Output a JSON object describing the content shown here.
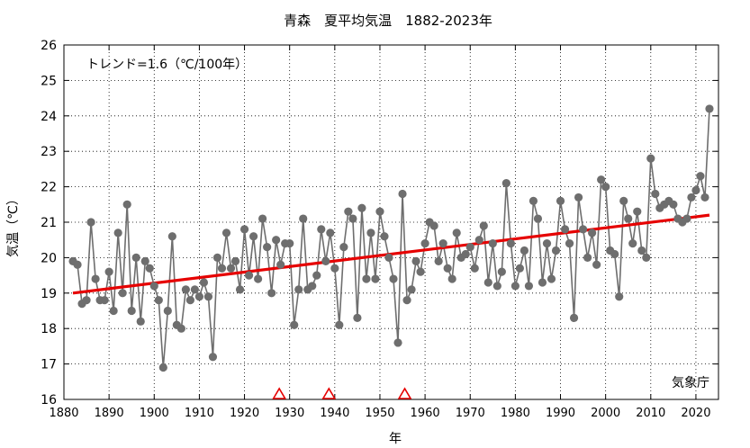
{
  "chart_data": {
    "type": "line",
    "title": "青森　夏平均気温　1882-2023年",
    "xlabel": "年",
    "ylabel": "気温（℃）",
    "xlim": [
      1880,
      2025
    ],
    "ylim": [
      16,
      26
    ],
    "x_ticks": [
      1880,
      1890,
      1900,
      1910,
      1920,
      1930,
      1940,
      1950,
      1960,
      1970,
      1980,
      1990,
      2000,
      2010,
      2020
    ],
    "y_ticks": [
      16,
      17,
      18,
      19,
      20,
      21,
      22,
      23,
      24,
      25,
      26
    ],
    "grid": true,
    "trend_label": "トレンド=1.6（℃/100年）",
    "source_label": "気象庁",
    "colors": {
      "series": "#6e6e6e",
      "trend": "#e60000",
      "marker": "#e60000",
      "grid": "#000000"
    },
    "series": [
      {
        "x": [
          1882,
          1883,
          1884,
          1885,
          1886,
          1887,
          1888,
          1889,
          1890,
          1891,
          1892,
          1893,
          1894,
          1895,
          1896,
          1897,
          1898,
          1899,
          1900,
          1901,
          1902,
          1903,
          1904,
          1905,
          1906,
          1907,
          1908,
          1909,
          1910,
          1911,
          1912,
          1913,
          1914,
          1915,
          1916,
          1917,
          1918,
          1919,
          1920,
          1921,
          1922,
          1923,
          1924,
          1925,
          1926,
          1927,
          1928,
          1929,
          1930,
          1931,
          1932,
          1933,
          1934,
          1935,
          1936,
          1937,
          1938,
          1939,
          1940,
          1941,
          1942,
          1943,
          1944,
          1945,
          1946,
          1947,
          1948,
          1949,
          1950,
          1951,
          1952,
          1953,
          1954,
          1955,
          1956,
          1957,
          1958,
          1959,
          1960,
          1961,
          1962,
          1963,
          1964,
          1965,
          1966,
          1967,
          1968,
          1969,
          1970,
          1971,
          1972,
          1973,
          1974,
          1975,
          1976,
          1977,
          1978,
          1979,
          1980,
          1981,
          1982,
          1983,
          1984,
          1985,
          1986,
          1987,
          1988,
          1989,
          1990,
          1991,
          1992,
          1993,
          1994,
          1995,
          1996,
          1997,
          1998,
          1999,
          2000,
          2001,
          2002,
          2003,
          2004,
          2005,
          2006,
          2007,
          2008,
          2009,
          2010,
          2011,
          2012,
          2013,
          2014,
          2015,
          2016,
          2017,
          2018,
          2019,
          2020,
          2021,
          2022,
          2023
        ],
        "y": [
          19.9,
          19.8,
          18.7,
          18.8,
          21.0,
          19.4,
          18.8,
          18.8,
          19.6,
          18.5,
          20.7,
          19.0,
          21.5,
          18.5,
          20.0,
          18.2,
          19.9,
          19.7,
          19.2,
          18.8,
          16.9,
          18.5,
          20.6,
          18.1,
          18.0,
          19.1,
          18.8,
          19.1,
          18.9,
          19.3,
          18.9,
          17.2,
          20.0,
          19.7,
          20.7,
          19.7,
          19.9,
          19.1,
          20.8,
          19.5,
          20.6,
          19.4,
          21.1,
          20.3,
          19.0,
          20.5,
          19.8,
          20.4,
          20.4,
          18.1,
          19.1,
          21.1,
          19.1,
          19.2,
          19.5,
          20.8,
          19.9,
          20.7,
          19.7,
          18.1,
          20.3,
          21.3,
          21.1,
          18.3,
          21.4,
          19.4,
          20.7,
          19.4,
          21.3,
          20.6,
          20.0,
          19.4,
          17.6,
          21.8,
          18.8,
          19.1,
          19.9,
          19.6,
          20.4,
          21.0,
          20.9,
          19.9,
          20.4,
          19.7,
          19.4,
          20.7,
          20.0,
          20.1,
          20.3,
          19.7,
          20.5,
          20.9,
          19.3,
          20.4,
          19.2,
          19.6,
          22.1,
          20.4,
          19.2,
          19.7,
          20.2,
          19.2,
          21.6,
          21.1,
          19.3,
          20.4,
          19.4,
          20.2,
          21.6,
          20.8,
          20.4,
          18.3,
          21.7,
          20.8,
          20.0,
          20.7,
          19.8,
          22.2,
          22.0,
          20.2,
          20.1,
          18.9,
          21.6,
          21.1,
          20.4,
          21.3,
          20.2,
          20.0,
          22.8,
          21.8,
          21.4,
          21.5,
          21.6,
          21.5,
          21.1,
          21.0,
          21.1,
          21.7,
          21.9,
          22.3,
          21.7,
          24.2
        ]
      }
    ],
    "trend": {
      "x": [
        1882,
        2023
      ],
      "y": [
        19.0,
        21.2
      ]
    },
    "change_markers_x": [
      1927.7,
      1938.7,
      1955.5
    ]
  }
}
